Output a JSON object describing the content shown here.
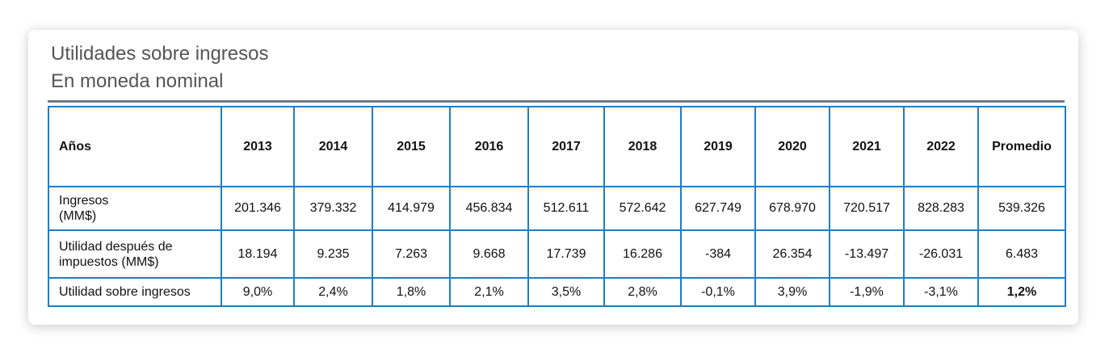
{
  "title": "Utilidades sobre ingresos",
  "subtitle": "En moneda nominal",
  "table": {
    "header": [
      "Años",
      "2013",
      "2014",
      "2015",
      "2016",
      "2017",
      "2018",
      "2019",
      "2020",
      "2021",
      "2022",
      "Promedio"
    ],
    "rows": [
      {
        "label_line1": "Ingresos",
        "label_line2": "(MM$)",
        "values": [
          "201.346",
          "379.332",
          "414.979",
          "456.834",
          "512.611",
          "572.642",
          "627.749",
          "678.970",
          "720.517",
          "828.283",
          "539.326"
        ]
      },
      {
        "label_line1": "Utilidad después de",
        "label_line2": "impuestos (MM$)",
        "values": [
          "18.194",
          "9.235",
          "7.263",
          "9.668",
          "17.739",
          "16.286",
          "-384",
          "26.354",
          "-13.497",
          "-26.031",
          "6.483"
        ]
      },
      {
        "label_line1": "Utilidad sobre ingresos",
        "label_line2": "",
        "values": [
          "9,0%",
          "2,4%",
          "1,8%",
          "2,1%",
          "3,5%",
          "2,8%",
          "-0,1%",
          "3,9%",
          "-1,9%",
          "-3,1%",
          "1,2%"
        ]
      }
    ]
  }
}
